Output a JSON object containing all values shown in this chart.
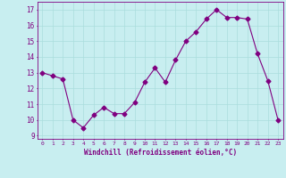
{
  "x": [
    0,
    1,
    2,
    3,
    4,
    5,
    6,
    7,
    8,
    9,
    10,
    11,
    12,
    13,
    14,
    15,
    16,
    17,
    18,
    19,
    20,
    21,
    22,
    23
  ],
  "y": [
    13.0,
    12.8,
    12.6,
    10.0,
    9.5,
    10.3,
    10.8,
    10.4,
    10.4,
    11.1,
    12.4,
    13.3,
    12.4,
    13.8,
    15.0,
    15.6,
    16.4,
    17.0,
    16.5,
    16.5,
    16.4,
    14.2,
    12.5,
    10.0
  ],
  "line_color": "#800080",
  "marker": "D",
  "marker_size": 2.5,
  "bg_color": "#c8eef0",
  "grid_color": "#aadddd",
  "xlabel": "Windchill (Refroidissement éolien,°C)",
  "ylim": [
    8.8,
    17.5
  ],
  "xlim": [
    -0.5,
    23.5
  ],
  "yticks": [
    9,
    10,
    11,
    12,
    13,
    14,
    15,
    16,
    17
  ],
  "xticks": [
    0,
    1,
    2,
    3,
    4,
    5,
    6,
    7,
    8,
    9,
    10,
    11,
    12,
    13,
    14,
    15,
    16,
    17,
    18,
    19,
    20,
    21,
    22,
    23
  ],
  "axis_color": "#800080",
  "tick_color": "#800080",
  "label_color": "#800080"
}
